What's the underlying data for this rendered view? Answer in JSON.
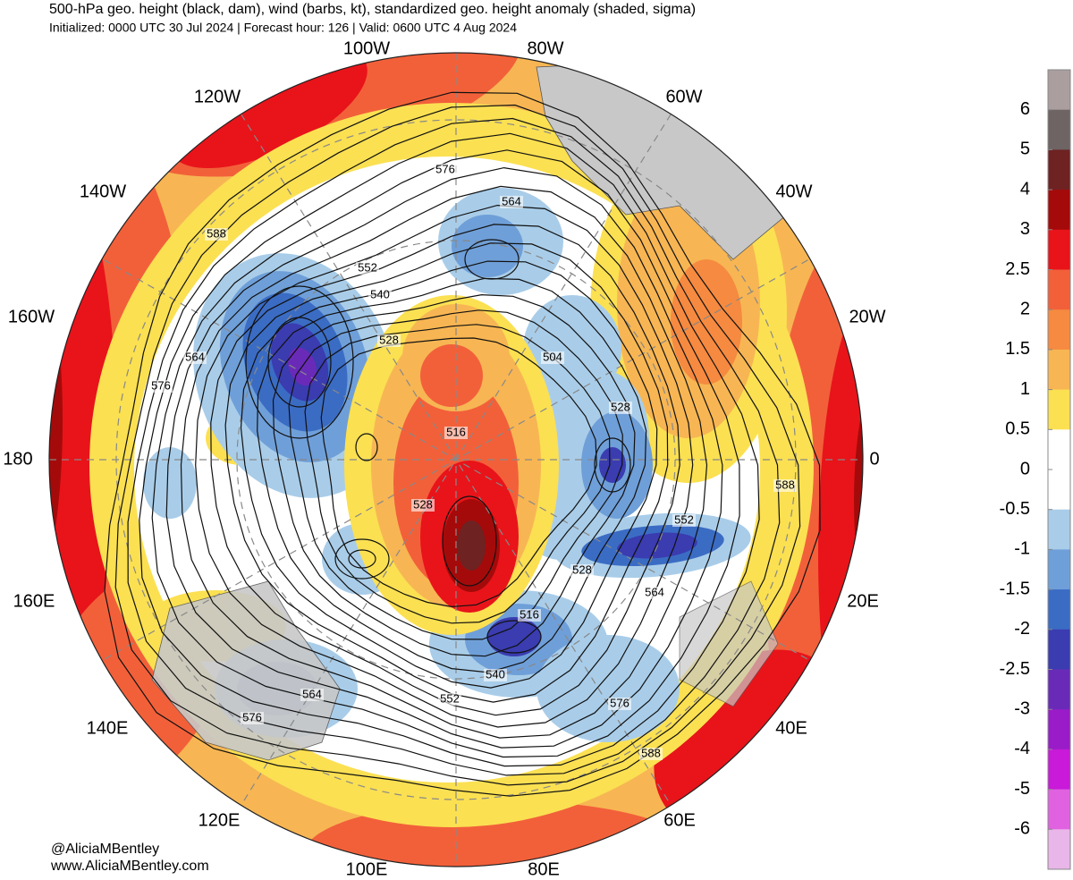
{
  "header": {
    "title": "500-hPa geo. height (black, dam), wind (barbs, kt), standardized geo. height anomaly (shaded, sigma)",
    "subtitle": "Initialized: 0000 UTC 30 Jul 2024 | Forecast hour: 126 | Valid: 0600 UTC 4 Aug 2024"
  },
  "map": {
    "longitude_labels": [
      "100W",
      "80W",
      "120W",
      "60W",
      "140W",
      "40W",
      "160W",
      "20W",
      "180",
      "0",
      "160E",
      "20E",
      "140E",
      "40E",
      "120E",
      "60E",
      "100E",
      "80E"
    ],
    "contour_labels": [
      576,
      564,
      588,
      552,
      540,
      528,
      564,
      576,
      504,
      528,
      516,
      528,
      552,
      528,
      564,
      516,
      540,
      552,
      564,
      576,
      576,
      588,
      588
    ]
  },
  "colorbar": {
    "ticks": [
      6,
      5,
      4,
      3,
      2.5,
      2,
      1.5,
      1,
      0.5,
      0,
      -0.5,
      -1,
      -1.5,
      -2,
      -2.5,
      -3,
      -4,
      -5,
      -6
    ],
    "colors": [
      "#aa9e9e",
      "#6e6464",
      "#6e2222",
      "#a50a0a",
      "#e8141a",
      "#f2603a",
      "#f58a40",
      "#f7b653",
      "#fbe052",
      "#ffffff",
      "#ffffff",
      "#a9cde9",
      "#6f9fd8",
      "#3b6cc4",
      "#3a3cb0",
      "#6a2ab8",
      "#9a1cc8",
      "#c81ad8",
      "#e062e0",
      "#e8b6e8"
    ]
  },
  "credits": [
    "@AliciaMBentley",
    "www.AliciaMBentley.com"
  ]
}
